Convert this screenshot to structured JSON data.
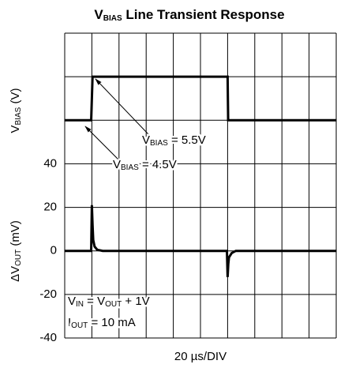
{
  "chart_data": {
    "type": "line",
    "title": [
      "V",
      "BIAS",
      " Line Transient Response"
    ],
    "y_label": [
      "ΔV",
      "OUT",
      " (mV)"
    ],
    "y2_label": [
      "V",
      "BIAS",
      " (V)"
    ],
    "x_label": "20 µs/DIV",
    "xlim": [
      0,
      200
    ],
    "ylim": [
      -40,
      100
    ],
    "yticks": [
      -40,
      -20,
      0,
      20,
      40
    ],
    "y2lim": [
      -0.5,
      6.5
    ],
    "xgrid": [
      0,
      20,
      40,
      60,
      80,
      100,
      120,
      140,
      160,
      180,
      200
    ],
    "ygrid": [
      -40,
      -20,
      0,
      20,
      40,
      60,
      80,
      100
    ],
    "series": [
      {
        "name": [
          "V",
          "BIAS"
        ],
        "color": "#000000",
        "axis": "y2",
        "x": [
          0,
          19.5,
          20.5,
          120,
          120.4,
          200
        ],
        "values": [
          4.5,
          4.5,
          5.5,
          5.5,
          4.5,
          4.5
        ]
      },
      {
        "name": [
          "ΔV",
          "OUT"
        ],
        "color": "#000000",
        "axis": "y",
        "x": [
          0,
          19.5,
          20,
          20.5,
          21,
          22,
          24,
          28,
          119.5,
          120,
          120.5,
          121,
          123,
          126,
          200
        ],
        "values": [
          0,
          0,
          21,
          12,
          5,
          2,
          0.5,
          0,
          0,
          -12,
          -6,
          -3,
          -1,
          0,
          0
        ]
      }
    ],
    "annotations": [
      [
        "V",
        "BIAS",
        " = 5.5V"
      ],
      [
        "V",
        "BIAS",
        " = 4.5V"
      ],
      [
        "V",
        "IN",
        " = V",
        "OUT",
        " + 1V"
      ],
      [
        "I",
        "OUT",
        " = 10 mA"
      ]
    ]
  }
}
